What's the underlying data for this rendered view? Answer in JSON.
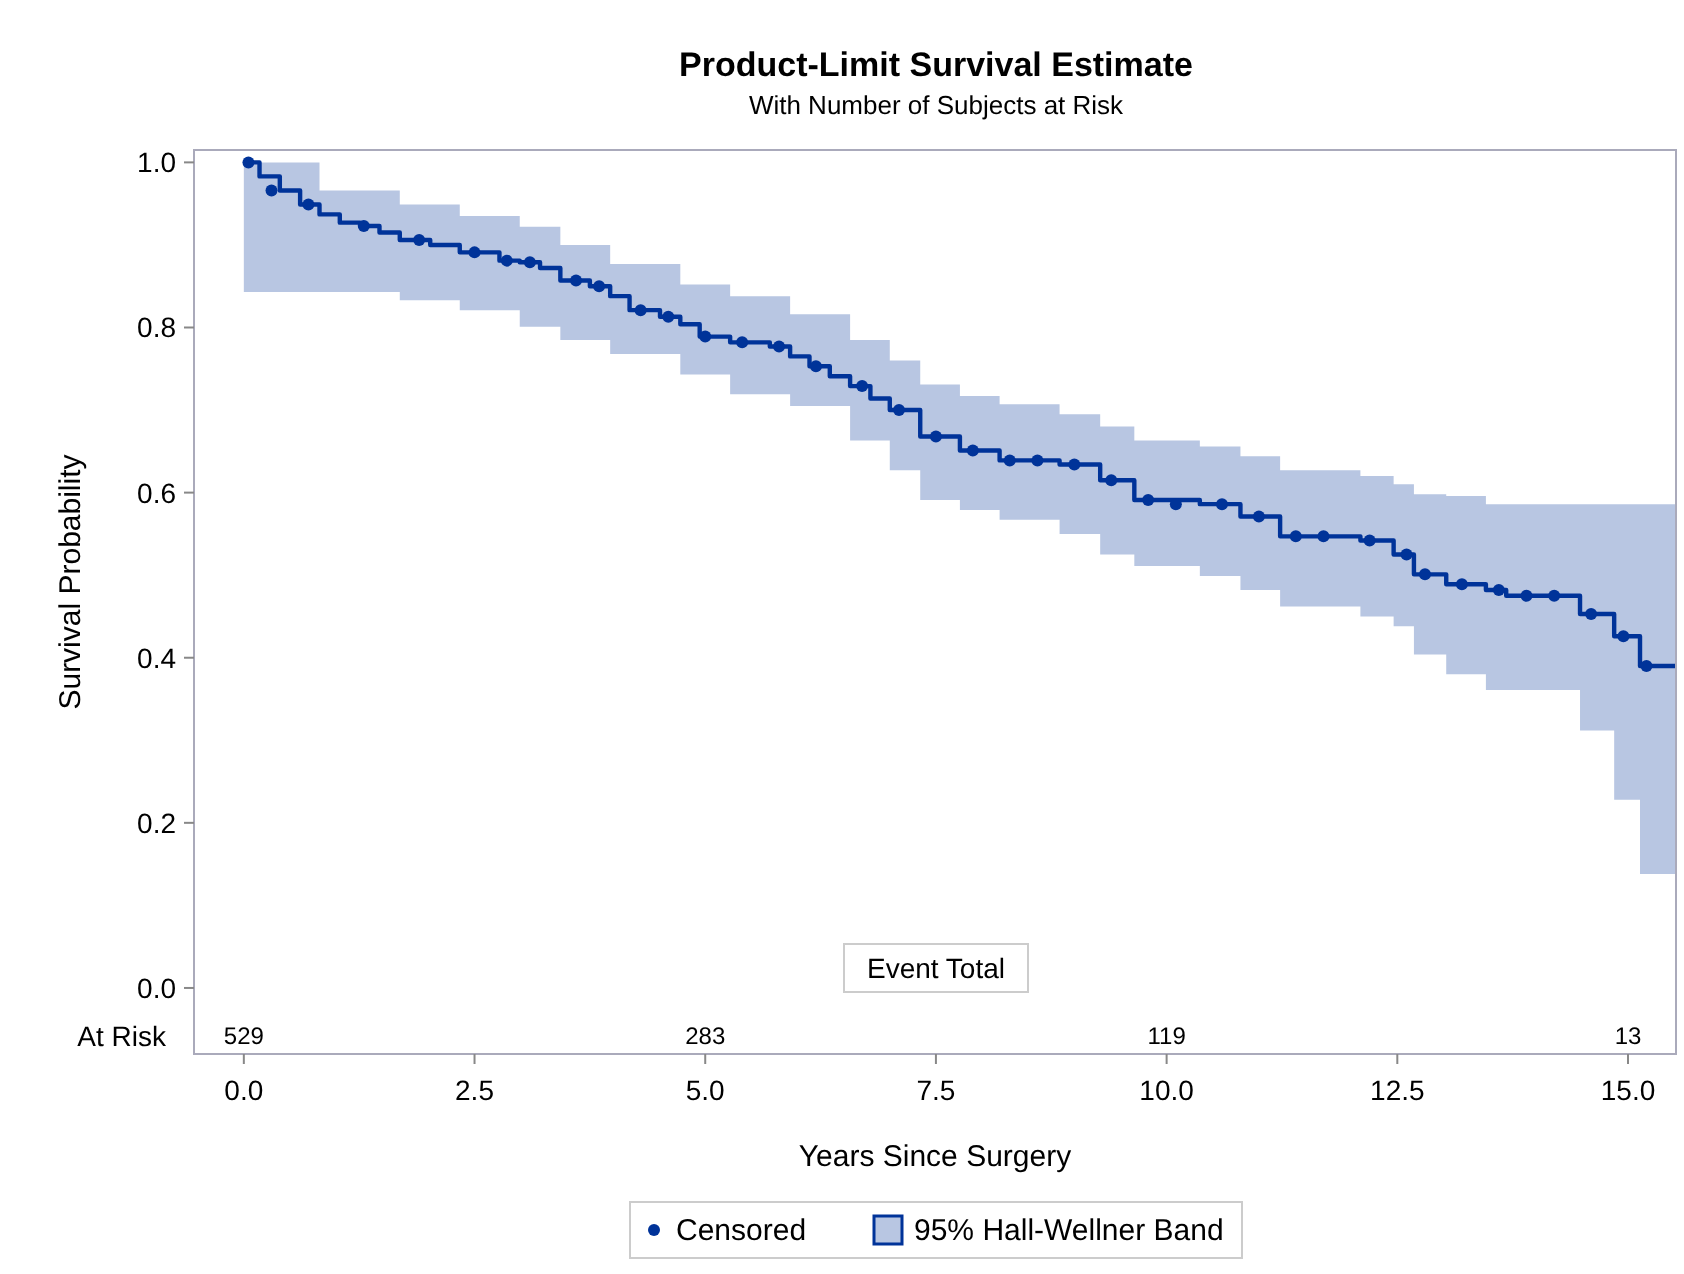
{
  "chart_data": {
    "type": "step",
    "title": "Product-Limit Survival Estimate",
    "subtitle": "With Number of Subjects at Risk",
    "xlabel": "Years Since Surgery",
    "ylabel": "Survival Probability",
    "xlim": [
      -0.54,
      15.52
    ],
    "ylim": [
      -0.08,
      1.015
    ],
    "xticks": [
      {
        "value": 0,
        "label": "0.0"
      },
      {
        "value": 2.5,
        "label": "2.5"
      },
      {
        "value": 5,
        "label": "5.0"
      },
      {
        "value": 7.5,
        "label": "7.5"
      },
      {
        "value": 10,
        "label": "10.0"
      },
      {
        "value": 12.5,
        "label": "12.5"
      },
      {
        "value": 15,
        "label": "15.0"
      }
    ],
    "yticks": [
      {
        "value": 0,
        "label": "0.0"
      },
      {
        "value": 0.2,
        "label": "0.2"
      },
      {
        "value": 0.4,
        "label": "0.4"
      },
      {
        "value": 0.6,
        "label": "0.6"
      },
      {
        "value": 0.8,
        "label": "0.8"
      },
      {
        "value": 1,
        "label": "1.0"
      }
    ],
    "grid": false,
    "legend": "bottom",
    "line_style": "solid",
    "series": [
      {
        "name": "95% Hall-Wellner Band",
        "color": "#003399",
        "x": [
          0,
          0.17,
          0.39,
          0.61,
          0.82,
          1.04,
          1.26,
          1.47,
          1.69,
          2.02,
          2.34,
          2.77,
          2.99,
          3.21,
          3.43,
          3.75,
          3.97,
          4.18,
          4.51,
          4.73,
          4.94,
          5.27,
          5.7,
          5.92,
          6.13,
          6.35,
          6.57,
          6.79,
          7.0,
          7.33,
          7.76,
          8.19,
          8.84,
          9.28,
          9.65,
          10.36,
          10.8,
          11.23,
          12.1,
          12.46,
          12.68,
          13.03,
          13.46,
          13.68,
          14.48,
          14.85,
          15.13,
          15.52
        ],
        "values": [
          1.0,
          0.983,
          0.966,
          0.949,
          0.937,
          0.927,
          0.923,
          0.915,
          0.906,
          0.9,
          0.891,
          0.881,
          0.879,
          0.872,
          0.857,
          0.85,
          0.838,
          0.821,
          0.813,
          0.804,
          0.789,
          0.782,
          0.777,
          0.765,
          0.753,
          0.741,
          0.729,
          0.714,
          0.7,
          0.668,
          0.651,
          0.639,
          0.634,
          0.615,
          0.591,
          0.586,
          0.571,
          0.547,
          0.542,
          0.525,
          0.501,
          0.489,
          0.482,
          0.475,
          0.453,
          0.426,
          0.39,
          0.39
        ],
        "upper": [
          1.0,
          1.0,
          1.0,
          1.0,
          0.966,
          0.966,
          0.966,
          0.966,
          0.949,
          0.949,
          0.935,
          0.935,
          0.922,
          0.922,
          0.9,
          0.9,
          0.877,
          0.877,
          0.877,
          0.852,
          0.852,
          0.838,
          0.838,
          0.816,
          0.816,
          0.816,
          0.785,
          0.785,
          0.76,
          0.731,
          0.717,
          0.707,
          0.695,
          0.68,
          0.663,
          0.656,
          0.644,
          0.627,
          0.62,
          0.61,
          0.598,
          0.596,
          0.586,
          0.586,
          0.586,
          0.586,
          0.586,
          0.586
        ],
        "lower": [
          0.843,
          0.843,
          0.843,
          0.843,
          0.843,
          0.843,
          0.843,
          0.843,
          0.833,
          0.833,
          0.821,
          0.821,
          0.801,
          0.801,
          0.785,
          0.785,
          0.768,
          0.768,
          0.768,
          0.743,
          0.743,
          0.719,
          0.719,
          0.705,
          0.705,
          0.705,
          0.663,
          0.663,
          0.627,
          0.591,
          0.579,
          0.567,
          0.55,
          0.525,
          0.511,
          0.499,
          0.482,
          0.462,
          0.45,
          0.438,
          0.404,
          0.38,
          0.361,
          0.361,
          0.312,
          0.228,
          0.138,
          0.138
        ]
      },
      {
        "type": "scatter",
        "name": "Censored",
        "color": "#003399",
        "marker": "circle",
        "x": [
          0.05,
          0.3,
          0.7,
          1.3,
          1.9,
          2.5,
          2.85,
          3.1,
          3.6,
          3.85,
          4.3,
          4.6,
          5.0,
          5.4,
          5.8,
          6.2,
          6.7,
          7.1,
          7.5,
          7.9,
          8.3,
          8.6,
          9.0,
          9.4,
          9.8,
          10.1,
          10.6,
          11.0,
          11.4,
          11.7,
          12.2,
          12.6,
          12.8,
          13.2,
          13.6,
          13.9,
          14.2,
          14.6,
          14.95,
          15.2
        ],
        "values": [
          1.0,
          0.966,
          0.949,
          0.923,
          0.906,
          0.891,
          0.881,
          0.879,
          0.857,
          0.85,
          0.821,
          0.813,
          0.789,
          0.782,
          0.777,
          0.753,
          0.729,
          0.7,
          0.668,
          0.651,
          0.639,
          0.639,
          0.634,
          0.615,
          0.591,
          0.586,
          0.586,
          0.571,
          0.547,
          0.547,
          0.542,
          0.525,
          0.501,
          0.489,
          0.482,
          0.475,
          0.475,
          0.453,
          0.426,
          0.39
        ]
      }
    ],
    "annotations": [
      "Event Total",
      "At Risk",
      "529",
      "283",
      "119",
      "13"
    ]
  }
}
